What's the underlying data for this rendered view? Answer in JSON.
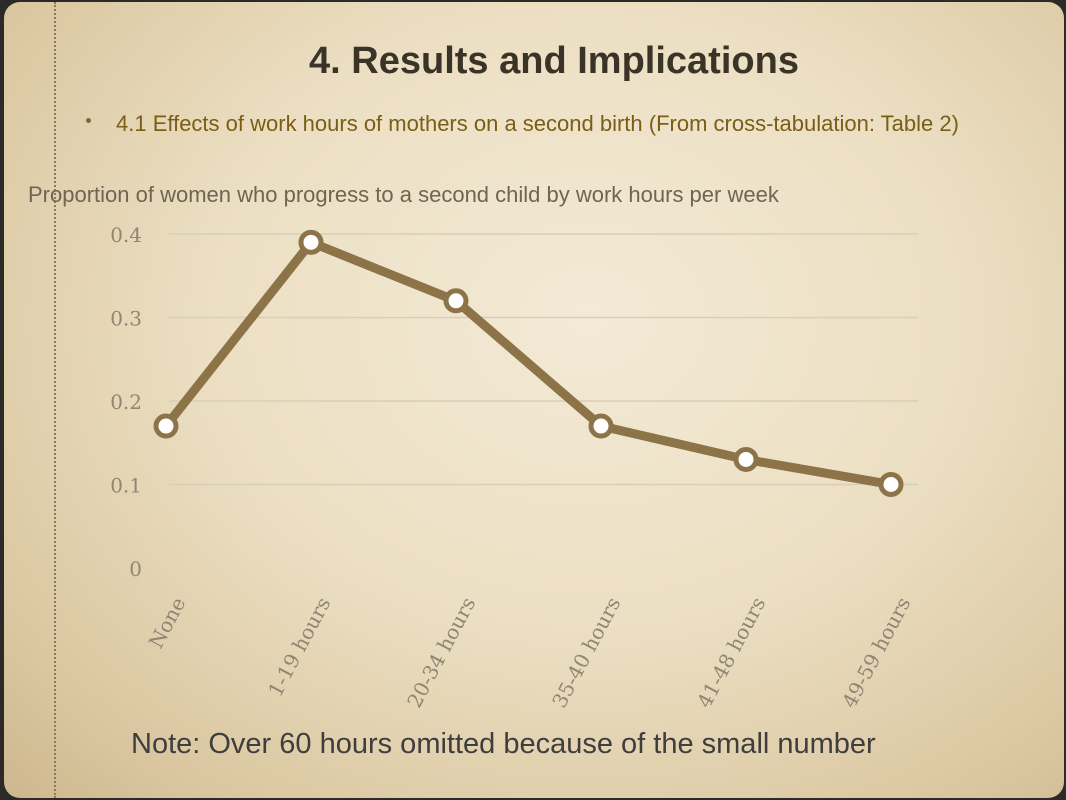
{
  "slide": {
    "title": "4. Results and Implications",
    "bullet": "4.1 Effects of work hours of mothers on a second birth (From cross-tabulation: Table 2)",
    "note": "Note: Over 60 hours omitted because of the small number"
  },
  "colors": {
    "line": "#8c7448",
    "grid": "#d9cfb8",
    "axis_text": "#8f8674",
    "bullet_text": "#7a5e16"
  },
  "chart_data": {
    "type": "line",
    "title": "Proportion of women  who progress to a second child by work hours per week",
    "categories": [
      "None",
      "1-19 hours",
      "20-34 hours",
      "35-40 hours",
      "41-48 hours",
      "49-59 hours"
    ],
    "values": [
      0.17,
      0.39,
      0.32,
      0.17,
      0.13,
      0.1
    ],
    "ylim": [
      0,
      0.4
    ],
    "yticks": [
      "0",
      "0.1",
      "0.2",
      "0.3",
      "0.4"
    ],
    "grid": true,
    "legend": "none"
  }
}
